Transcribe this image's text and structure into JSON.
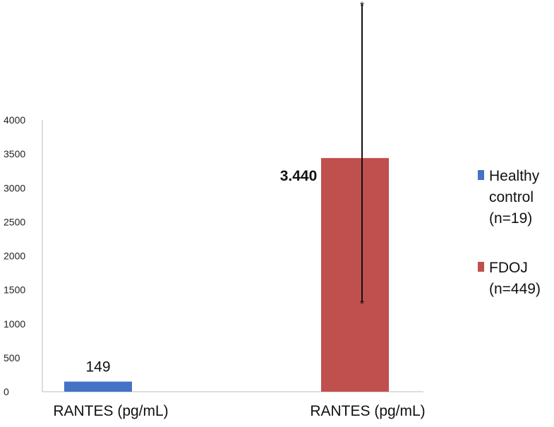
{
  "chart_data": {
    "type": "bar",
    "title": "",
    "xlabel": "",
    "ylabel": "",
    "ylim": [
      0,
      4000
    ],
    "yticks": [
      0,
      500,
      1000,
      1500,
      2000,
      2500,
      3000,
      3500,
      4000
    ],
    "ytick_labels": [
      "0",
      "500",
      "1000",
      "1500",
      "2000",
      "2500",
      "3000",
      "3500",
      "4000"
    ],
    "grid": false,
    "legend_position": "right",
    "categories": [
      "RANTES (pg/mL)",
      "RANTES (pg/mL)"
    ],
    "series": [
      {
        "name": "Healthy control (n=19)",
        "legend_lines": [
          "Healthy",
          "control",
          "(n=19)"
        ],
        "color": "#4472C4",
        "values": [
          149,
          null
        ],
        "labels": [
          "149",
          ""
        ]
      },
      {
        "name": "FDOJ (n=449)",
        "legend_lines": [
          "FDOJ",
          "(n=449)"
        ],
        "color": "#C0504D",
        "values": [
          null,
          3440
        ],
        "labels": [
          "",
          "3.440"
        ],
        "error_bar": {
          "low": 1310,
          "high": 5700
        }
      }
    ]
  }
}
